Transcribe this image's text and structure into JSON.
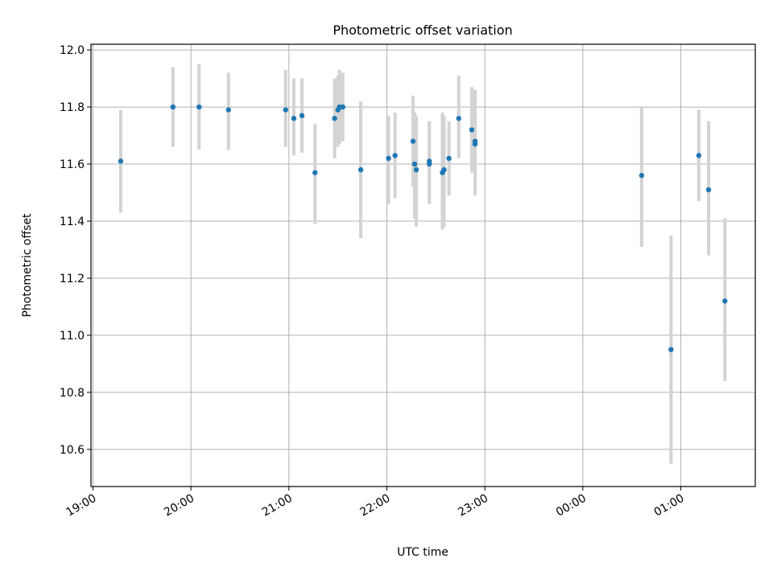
{
  "chart_data": {
    "type": "scatter",
    "title": "Photometric offset variation",
    "xlabel": "UTC time",
    "ylabel": "Photometric offset",
    "xlim_hours": [
      18.98,
      25.76
    ],
    "ylim": [
      10.47,
      12.02
    ],
    "xticks": [
      {
        "value": 19,
        "label": "19:00"
      },
      {
        "value": 20,
        "label": "20:00"
      },
      {
        "value": 21,
        "label": "21:00"
      },
      {
        "value": 22,
        "label": "22:00"
      },
      {
        "value": 23,
        "label": "23:00"
      },
      {
        "value": 24,
        "label": "00:00"
      },
      {
        "value": 25,
        "label": "01:00"
      }
    ],
    "yticks": [
      {
        "value": 10.6,
        "label": "10.6"
      },
      {
        "value": 10.8,
        "label": "10.8"
      },
      {
        "value": 11.0,
        "label": "11.0"
      },
      {
        "value": 11.2,
        "label": "11.2"
      },
      {
        "value": 11.4,
        "label": "11.4"
      },
      {
        "value": 11.6,
        "label": "11.6"
      },
      {
        "value": 11.8,
        "label": "11.8"
      },
      {
        "value": 12.0,
        "label": "12.0"
      }
    ],
    "grid": true,
    "series": [
      {
        "marker_color": "#1f77b4",
        "errorbar_color": "#d3d3d3",
        "points": [
          {
            "x": "19:17",
            "y": 11.61,
            "lo": 11.43,
            "hi": 11.79
          },
          {
            "x": "19:49",
            "y": 11.8,
            "lo": 11.66,
            "hi": 11.94
          },
          {
            "x": "20:05",
            "y": 11.8,
            "lo": 11.65,
            "hi": 11.95
          },
          {
            "x": "20:23",
            "y": 11.79,
            "lo": 11.65,
            "hi": 11.92
          },
          {
            "x": "20:58",
            "y": 11.79,
            "lo": 11.66,
            "hi": 11.93
          },
          {
            "x": "21:03",
            "y": 11.76,
            "lo": 11.63,
            "hi": 11.9
          },
          {
            "x": "21:08",
            "y": 11.77,
            "lo": 11.64,
            "hi": 11.9
          },
          {
            "x": "21:16",
            "y": 11.57,
            "lo": 11.39,
            "hi": 11.74
          },
          {
            "x": "21:28",
            "y": 11.76,
            "lo": 11.62,
            "hi": 11.9
          },
          {
            "x": "21:30",
            "y": 11.79,
            "lo": 11.66,
            "hi": 11.91
          },
          {
            "x": "21:31",
            "y": 11.8,
            "lo": 11.67,
            "hi": 11.93
          },
          {
            "x": "21:33",
            "y": 11.8,
            "lo": 11.68,
            "hi": 11.92
          },
          {
            "x": "21:44",
            "y": 11.58,
            "lo": 11.34,
            "hi": 11.82
          },
          {
            "x": "22:01",
            "y": 11.62,
            "lo": 11.46,
            "hi": 11.77
          },
          {
            "x": "22:05",
            "y": 11.63,
            "lo": 11.48,
            "hi": 11.78
          },
          {
            "x": "22:16",
            "y": 11.68,
            "lo": 11.52,
            "hi": 11.84
          },
          {
            "x": "22:17",
            "y": 11.6,
            "lo": 11.41,
            "hi": 11.78
          },
          {
            "x": "22:18",
            "y": 11.58,
            "lo": 11.38,
            "hi": 11.77
          },
          {
            "x": "22:26",
            "y": 11.61,
            "lo": 11.46,
            "hi": 11.75
          },
          {
            "x": "22:26",
            "y": 11.6,
            "lo": 11.46,
            "hi": 11.75
          },
          {
            "x": "22:34",
            "y": 11.57,
            "lo": 11.37,
            "hi": 11.78
          },
          {
            "x": "22:35",
            "y": 11.58,
            "lo": 11.38,
            "hi": 11.77
          },
          {
            "x": "22:38",
            "y": 11.62,
            "lo": 11.49,
            "hi": 11.75
          },
          {
            "x": "22:44",
            "y": 11.76,
            "lo": 11.62,
            "hi": 11.91
          },
          {
            "x": "22:52",
            "y": 11.72,
            "lo": 11.57,
            "hi": 11.87
          },
          {
            "x": "22:54",
            "y": 11.68,
            "lo": 11.5,
            "hi": 11.86
          },
          {
            "x": "22:54",
            "y": 11.67,
            "lo": 11.49,
            "hi": 11.85
          },
          {
            "x": "00:36",
            "y": 11.56,
            "lo": 11.31,
            "hi": 11.8
          },
          {
            "x": "00:54",
            "y": 10.95,
            "lo": 10.55,
            "hi": 11.35
          },
          {
            "x": "01:11",
            "y": 11.63,
            "lo": 11.47,
            "hi": 11.79
          },
          {
            "x": "01:17",
            "y": 11.51,
            "lo": 11.28,
            "hi": 11.75
          },
          {
            "x": "01:27",
            "y": 11.12,
            "lo": 10.84,
            "hi": 11.41
          }
        ]
      }
    ]
  }
}
